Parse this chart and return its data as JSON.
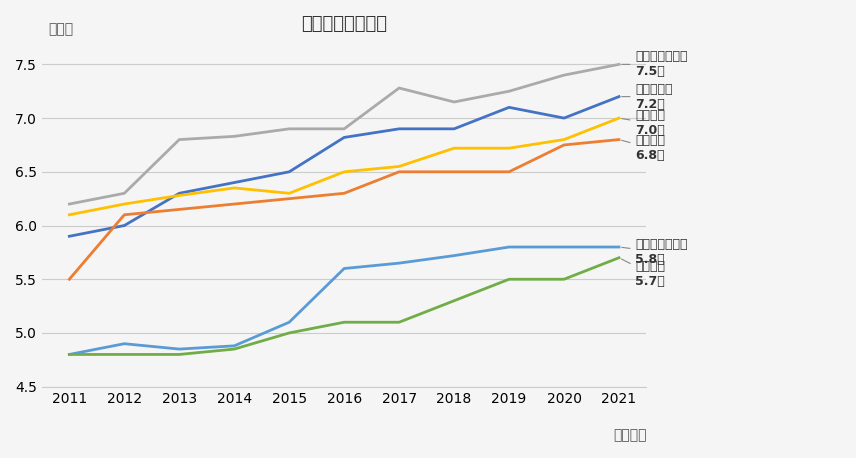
{
  "title": "年収倍率（全国）",
  "xlabel": "（年度）",
  "ylabel": "（倍）",
  "years": [
    2011,
    2012,
    2013,
    2014,
    2015,
    2016,
    2017,
    2018,
    2019,
    2020,
    2021
  ],
  "series": [
    {
      "name": "土地付注文住宅",
      "label": "土地付注文住宅\n7.5倍",
      "color": "#aaaaaa",
      "values": [
        6.2,
        6.3,
        6.8,
        6.83,
        6.9,
        6.9,
        7.28,
        7.15,
        7.25,
        7.4,
        7.5
      ]
    },
    {
      "name": "マンション",
      "label": "マンション\n7.2倍",
      "color": "#4472c4",
      "values": [
        5.9,
        6.0,
        6.3,
        6.4,
        6.5,
        6.82,
        6.9,
        6.9,
        7.1,
        7.0,
        7.2
      ]
    },
    {
      "name": "建売住宅",
      "label": "建売住宅\n7.0倍",
      "color": "#ffc000",
      "values": [
        6.1,
        6.2,
        6.28,
        6.35,
        6.3,
        6.5,
        6.55,
        6.72,
        6.72,
        6.8,
        7.0
      ]
    },
    {
      "name": "注文住宅",
      "label": "注文住宅\n6.8倍",
      "color": "#ed7d31",
      "values": [
        5.5,
        6.1,
        6.15,
        6.2,
        6.25,
        6.3,
        6.5,
        6.5,
        6.5,
        6.75,
        6.8
      ]
    },
    {
      "name": "中古マンション",
      "label": "中古マンション\n5.8倍",
      "color": "#5b9bd5",
      "values": [
        4.8,
        4.9,
        4.85,
        4.88,
        5.1,
        5.6,
        5.65,
        5.72,
        5.8,
        5.8,
        5.8
      ]
    },
    {
      "name": "中古戸建",
      "label": "中古戸建\n5.7倍",
      "color": "#70ad47",
      "values": [
        4.8,
        4.8,
        4.8,
        4.85,
        5.0,
        5.1,
        5.1,
        5.3,
        5.5,
        5.5,
        5.7
      ]
    }
  ],
  "ylim": [
    4.5,
    7.7
  ],
  "yticks": [
    4.5,
    5.0,
    5.5,
    6.0,
    6.5,
    7.0,
    7.5
  ],
  "background_color": "#f5f5f5",
  "title_fontsize": 13,
  "label_fontsize": 10,
  "tick_fontsize": 10
}
